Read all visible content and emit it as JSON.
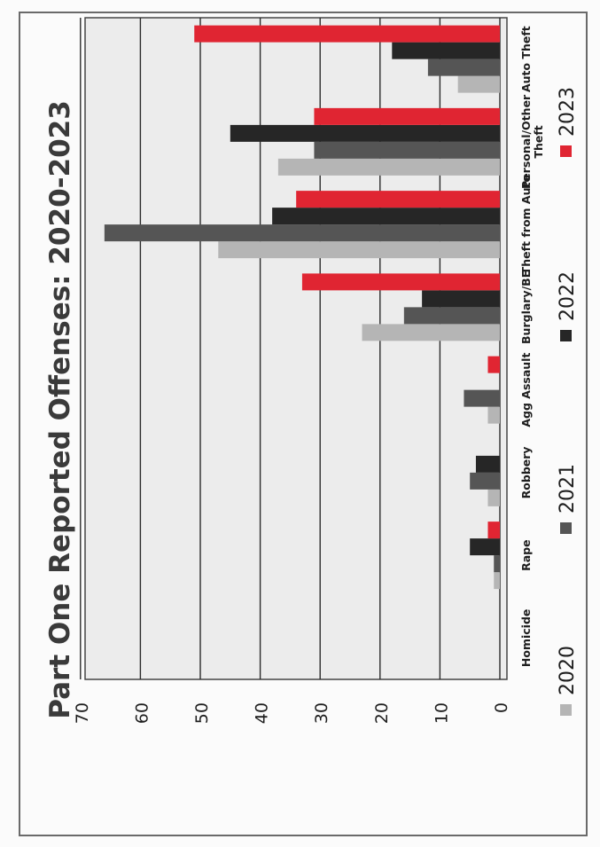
{
  "chart_data": {
    "type": "bar",
    "orientation": "rotated-90",
    "title": "Part One Reported Offenses: 2020-2023",
    "categories": [
      "Homicide",
      "Rape",
      "Robbery",
      "Agg Assault",
      "Burglary/BE",
      "Theft from Auto",
      "Personal/Other Theft",
      "Auto Theft"
    ],
    "series": [
      {
        "name": "2020",
        "color": "#b5b5b5",
        "values": [
          0,
          1,
          2,
          2,
          23,
          47,
          37,
          7
        ]
      },
      {
        "name": "2021",
        "color": "#555555",
        "values": [
          0,
          1,
          5,
          6,
          16,
          66,
          31,
          12
        ]
      },
      {
        "name": "2022",
        "color": "#262626",
        "values": [
          0,
          5,
          4,
          0,
          13,
          38,
          45,
          18
        ]
      },
      {
        "name": "2023",
        "color": "#e02532",
        "values": [
          0,
          2,
          0,
          2,
          33,
          34,
          31,
          51
        ]
      }
    ],
    "y_ticks": [
      "0",
      "10",
      "20",
      "30",
      "40",
      "50",
      "60",
      "70"
    ],
    "ylim": [
      0,
      70
    ],
    "grid": true,
    "legend_position": "bottom"
  }
}
